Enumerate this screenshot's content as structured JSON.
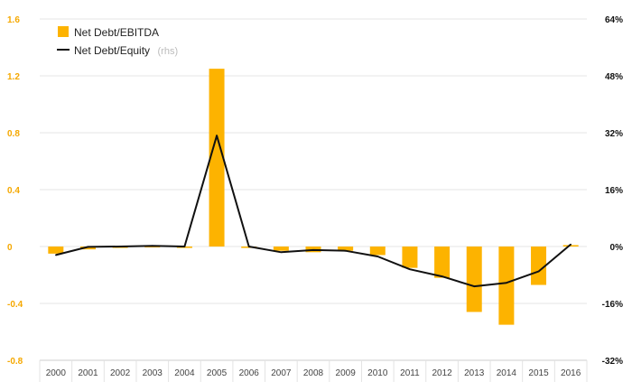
{
  "colors": {
    "bar": "#FDB300",
    "line": "#111111",
    "left_axis": "#f5a800",
    "right_axis": "#111111",
    "grid": "#e6e6e6"
  },
  "legend": {
    "bar_label": "Net Debt/EBITDA",
    "line_label": "Net Debt/Equity",
    "line_sub": "(rhs)"
  },
  "chart_data": {
    "type": "bar",
    "title": "",
    "xlabel": "",
    "ylabel": "",
    "legend_position": "top-left",
    "grid": true,
    "categories": [
      "2000",
      "2001",
      "2002",
      "2003",
      "2004",
      "2005",
      "2006",
      "2007",
      "2008",
      "2009",
      "2010",
      "2011",
      "2012",
      "2013",
      "2014",
      "2015",
      "2016"
    ],
    "ylim_left": [
      -0.8,
      1.6
    ],
    "ylim_right": [
      -32,
      64
    ],
    "left_ticks": [
      "-0.8",
      "-0.4",
      "0",
      "0.4",
      "0.8",
      "1.2",
      "1.6"
    ],
    "right_ticks": [
      "-32%",
      "-16%",
      "0%",
      "16%",
      "32%",
      "48%",
      "64%"
    ],
    "series": [
      {
        "name": "Net Debt/EBITDA",
        "type": "bar",
        "axis": "left",
        "values": [
          -0.05,
          -0.02,
          -0.01,
          -0.005,
          -0.01,
          1.25,
          -0.01,
          -0.03,
          -0.04,
          -0.03,
          -0.06,
          -0.15,
          -0.22,
          -0.46,
          -0.55,
          -0.27,
          0.01
        ]
      },
      {
        "name": "Net Debt/Equity",
        "type": "line",
        "axis": "right",
        "values": [
          -2.4,
          -0.1,
          0.0,
          0.2,
          0.0,
          31.2,
          0.0,
          -1.6,
          -1.0,
          -1.2,
          -2.8,
          -6.4,
          -8.4,
          -11.2,
          -10.2,
          -7.0,
          0.6
        ]
      }
    ]
  }
}
